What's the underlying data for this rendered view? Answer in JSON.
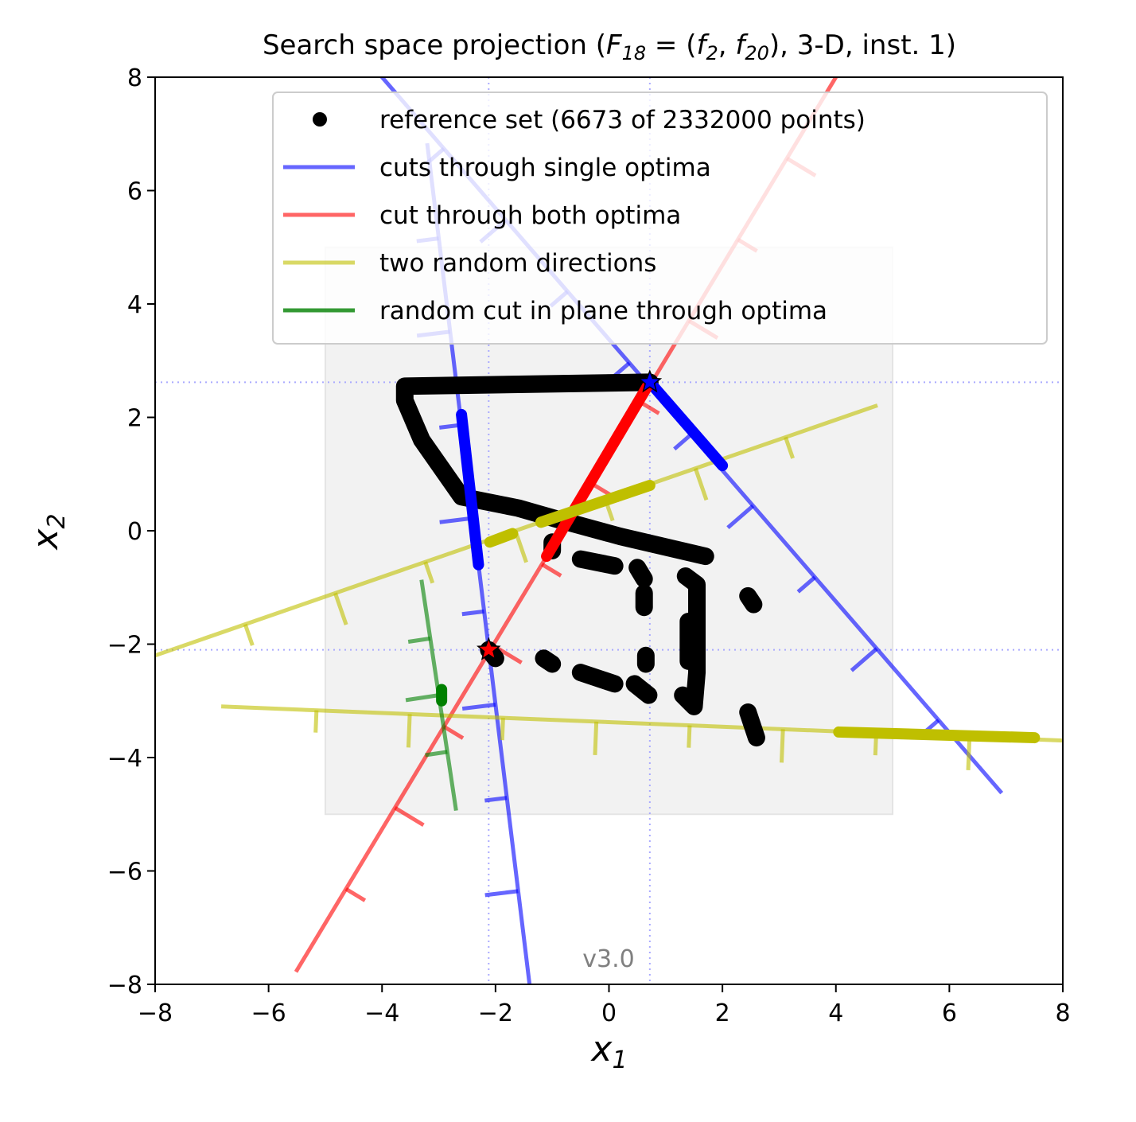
{
  "chart_data": {
    "type": "scatter",
    "title": "Search space projection ($F_{18} = (f_2, f_{20})$, 3-D, inst. 1)",
    "title_parts": [
      "Search space projection (",
      "F",
      "18",
      " = (",
      "f",
      "2",
      ", ",
      "f",
      "20",
      "), 3-D, inst. 1)"
    ],
    "xlabel": "x",
    "xlabel_sub": "1",
    "ylabel": "x",
    "ylabel_sub": "2",
    "xlim": [
      -8,
      8
    ],
    "ylim": [
      -8,
      8
    ],
    "x_ticks": [
      -8,
      -6,
      -4,
      -2,
      0,
      2,
      4,
      6,
      8
    ],
    "y_ticks": [
      -8,
      -6,
      -4,
      -2,
      0,
      2,
      4,
      6,
      8
    ],
    "x_tick_labels": [
      "−8",
      "−6",
      "−4",
      "−2",
      "0",
      "2",
      "4",
      "6",
      "8"
    ],
    "y_tick_labels": [
      "−8",
      "−6",
      "−4",
      "−2",
      "0",
      "2",
      "4",
      "6",
      "8"
    ],
    "grid": false,
    "legend_position": "top-right",
    "version_label": "v3.0",
    "region_of_interest": {
      "x": [
        -5,
        5
      ],
      "y": [
        -5,
        5
      ],
      "color": "#f2f2f2"
    },
    "optima": [
      {
        "name": "optimum f2",
        "x": 0.72,
        "y": 2.62,
        "color": "#0000ff"
      },
      {
        "name": "optimum f20",
        "x": -2.12,
        "y": -2.1,
        "color": "#ff0000"
      }
    ],
    "series": [
      {
        "name": "reference set (6673 of 2332000 points)",
        "color": "#000000",
        "kind": "points",
        "polylines": [
          [
            [
              0.72,
              2.62
            ],
            [
              -3.6,
              2.55
            ],
            [
              -3.6,
              2.3
            ],
            [
              -3.3,
              1.6
            ],
            [
              -2.6,
              0.6
            ],
            [
              -1.6,
              0.4
            ],
            [
              -0.9,
              0.2
            ],
            [
              0.2,
              -0.1
            ],
            [
              1.7,
              -0.45
            ]
          ],
          [
            [
              -1.0,
              -0.2
            ],
            [
              -1.0,
              -0.35
            ]
          ],
          [
            [
              -0.5,
              -0.5
            ],
            [
              0.1,
              -0.62
            ]
          ],
          [
            [
              0.5,
              -0.65
            ],
            [
              0.62,
              -0.85
            ]
          ],
          [
            [
              0.62,
              -1.1
            ],
            [
              0.62,
              -1.35
            ]
          ],
          [
            [
              1.35,
              -0.8
            ],
            [
              1.55,
              -0.95
            ],
            [
              1.55,
              -2.5
            ],
            [
              1.5,
              -3.1
            ],
            [
              1.3,
              -2.9
            ]
          ],
          [
            [
              1.4,
              -1.6
            ],
            [
              1.4,
              -2.3
            ]
          ],
          [
            [
              2.45,
              -1.15
            ],
            [
              2.55,
              -1.3
            ]
          ],
          [
            [
              2.45,
              -3.2
            ],
            [
              2.6,
              -3.65
            ]
          ],
          [
            [
              0.65,
              -2.2
            ],
            [
              0.65,
              -2.35
            ]
          ],
          [
            [
              -1.15,
              -2.25
            ],
            [
              -1.0,
              -2.35
            ]
          ],
          [
            [
              -0.5,
              -2.5
            ],
            [
              0.1,
              -2.7
            ]
          ],
          [
            [
              0.45,
              -2.7
            ],
            [
              0.7,
              -2.9
            ]
          ],
          [
            [
              -2.12,
              -2.1
            ],
            [
              -2.0,
              -2.25
            ]
          ]
        ]
      },
      {
        "name": "cuts through single optima",
        "color": "#0000ff",
        "kind": "line",
        "lines": [
          {
            "from": [
              -4.0,
              8.0
            ],
            "to": [
              6.9,
              -4.6
            ]
          },
          {
            "from": [
              -3.2,
              6.8
            ],
            "to": [
              -1.4,
              -8.0
            ]
          }
        ],
        "highlights": [
          {
            "from": [
              0.72,
              2.62
            ],
            "to": [
              2.0,
              1.15
            ]
          },
          {
            "from": [
              -2.6,
              2.05
            ],
            "to": [
              -2.3,
              -0.6
            ]
          }
        ]
      },
      {
        "name": "cut through both optima",
        "color": "#ff0000",
        "kind": "line",
        "lines": [
          {
            "from": [
              -5.5,
              -7.75
            ],
            "to": [
              4.0,
              8.0
            ]
          }
        ],
        "highlights": [
          {
            "from": [
              -1.1,
              -0.45
            ],
            "to": [
              0.72,
              2.62
            ]
          }
        ]
      },
      {
        "name": "two random directions",
        "color": "#bfbf00",
        "kind": "line",
        "lines": [
          {
            "from": [
              -8.0,
              -2.2
            ],
            "to": [
              4.7,
              2.2
            ]
          },
          {
            "from": [
              -6.8,
              -3.1
            ],
            "to": [
              8.0,
              -3.7
            ]
          }
        ],
        "highlights": [
          {
            "from": [
              -2.1,
              -0.2
            ],
            "to": [
              -1.7,
              -0.05
            ]
          },
          {
            "from": [
              -1.2,
              0.15
            ],
            "to": [
              0.72,
              0.8
            ]
          },
          {
            "from": [
              4.05,
              -3.55
            ],
            "to": [
              7.5,
              -3.65
            ]
          }
        ]
      },
      {
        "name": "random cut in plane through optima",
        "color": "#008000",
        "kind": "line",
        "lines": [
          {
            "from": [
              -3.3,
              -0.9
            ],
            "to": [
              -2.7,
              -4.9
            ]
          }
        ],
        "highlights": [
          {
            "from": [
              -2.95,
              -2.8
            ],
            "to": [
              -2.95,
              -3.0
            ]
          }
        ]
      }
    ]
  }
}
